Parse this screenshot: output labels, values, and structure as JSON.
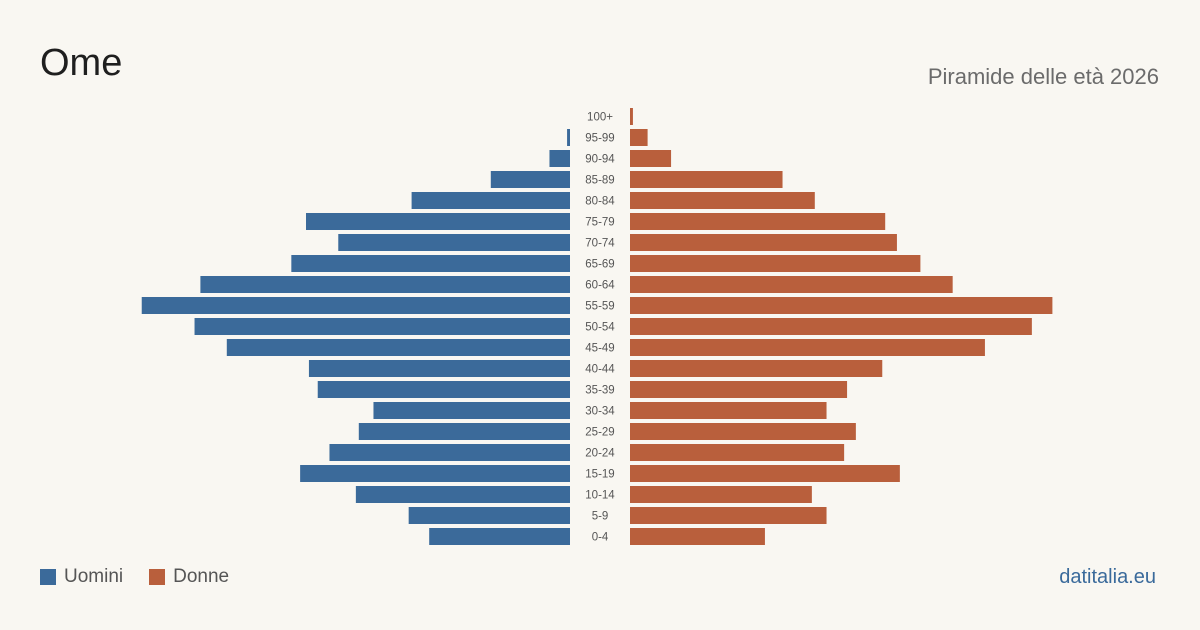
{
  "header": {
    "title": "Ome",
    "subtitle": "Piramide delle età 2026"
  },
  "legend": {
    "men_label": "Uomini",
    "women_label": "Donne"
  },
  "brand": "datitalia.eu",
  "colors": {
    "men": "#3b6a9a",
    "women": "#b95f3c",
    "background": "#f9f7f2",
    "label": "#555555"
  },
  "chart_data": {
    "type": "bar",
    "orientation": "horizontal-pyramid",
    "categories": [
      "100+",
      "95-99",
      "90-94",
      "85-89",
      "80-84",
      "75-79",
      "70-74",
      "65-69",
      "60-64",
      "55-59",
      "50-54",
      "45-49",
      "40-44",
      "35-39",
      "30-34",
      "25-29",
      "20-24",
      "15-19",
      "10-14",
      "5-9",
      "0-4"
    ],
    "series": [
      {
        "name": "Uomini",
        "values": [
          0,
          1,
          7,
          27,
          54,
          90,
          79,
          95,
          126,
          146,
          128,
          117,
          89,
          86,
          67,
          72,
          82,
          92,
          73,
          55,
          48
        ]
      },
      {
        "name": "Donne",
        "values": [
          1,
          6,
          14,
          52,
          63,
          87,
          91,
          99,
          110,
          144,
          137,
          121,
          86,
          74,
          67,
          77,
          73,
          92,
          62,
          67,
          46
        ]
      }
    ],
    "xlim": [
      0,
      150
    ],
    "grid": false,
    "legend_position": "bottom-left"
  }
}
